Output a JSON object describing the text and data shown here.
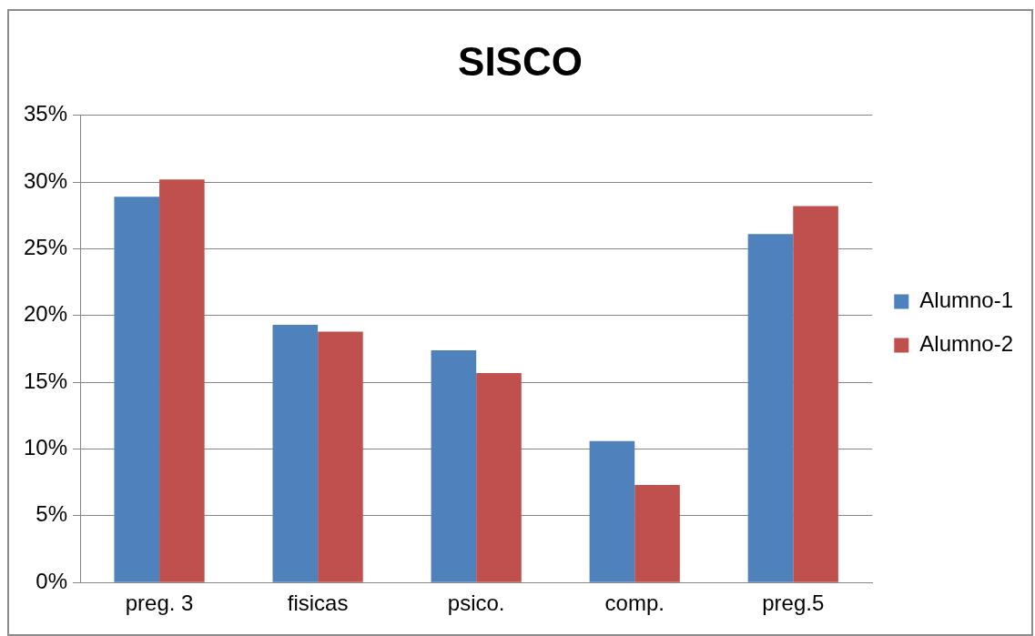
{
  "chart_data": {
    "type": "bar",
    "title": "SISCO",
    "categories": [
      "preg. 3",
      "fisicas",
      "psico.",
      "comp.",
      "preg.5"
    ],
    "series": [
      {
        "name": "Alumno-1",
        "color": "#4f81bd",
        "values": [
          28.9,
          19.3,
          17.4,
          10.6,
          26.1
        ]
      },
      {
        "name": "Alumno-2",
        "color": "#c0504d",
        "values": [
          30.2,
          18.8,
          15.7,
          7.3,
          28.2
        ]
      }
    ],
    "ylim": [
      0,
      35
    ],
    "yticks": [
      {
        "value": 0,
        "label": "0%"
      },
      {
        "value": 5,
        "label": "5%"
      },
      {
        "value": 10,
        "label": "10%"
      },
      {
        "value": 15,
        "label": "15%"
      },
      {
        "value": 20,
        "label": "20%"
      },
      {
        "value": 25,
        "label": "25%"
      },
      {
        "value": 30,
        "label": "30%"
      },
      {
        "value": 35,
        "label": "35%"
      }
    ],
    "grid": "y",
    "legend": "right"
  }
}
